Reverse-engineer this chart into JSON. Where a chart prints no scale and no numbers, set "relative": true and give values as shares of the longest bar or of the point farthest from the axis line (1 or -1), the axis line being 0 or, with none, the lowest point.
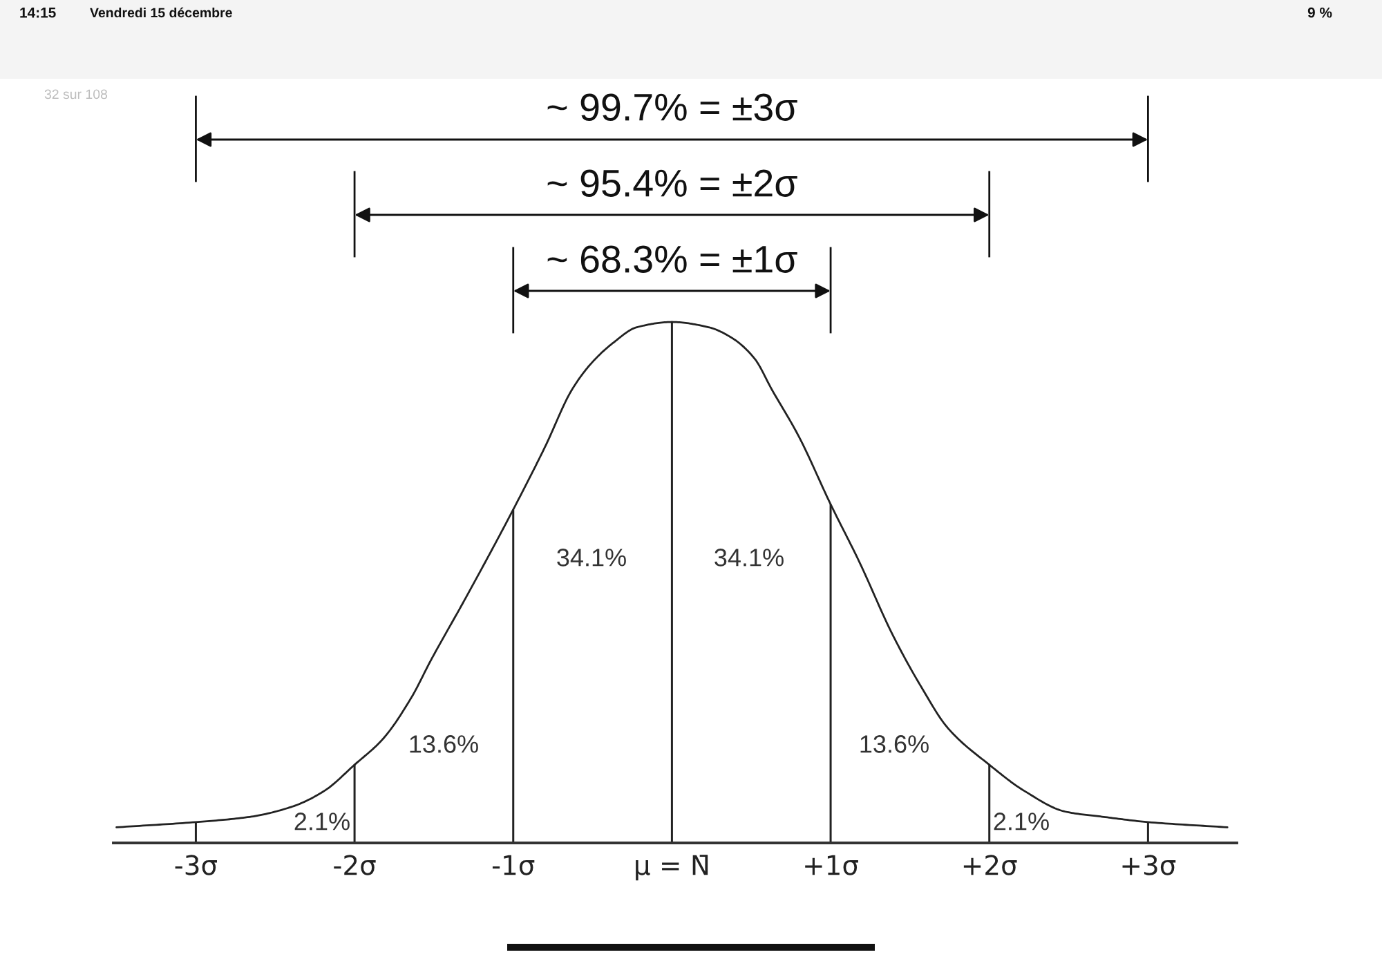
{
  "chart_data": {
    "type": "line",
    "relative": true,
    "xlim": [
      -3.52,
      3.56
    ],
    "xticks": [
      {
        "value": -3,
        "label": "-3σ"
      },
      {
        "value": -2,
        "label": "-2σ"
      },
      {
        "value": -1,
        "label": "-1σ"
      },
      {
        "value": 0,
        "label": "μ = N̄"
      },
      {
        "value": 1,
        "label": "+1σ"
      },
      {
        "value": 2,
        "label": "+2σ"
      },
      {
        "value": 3,
        "label": "+3σ"
      }
    ],
    "tick_labels": "x",
    "series": [
      {
        "color": "#222222",
        "x": [
          -3.5,
          -3.0,
          -2.66,
          -2.39,
          -2.19,
          -2.0,
          -1.82,
          -1.64,
          -1.52,
          -1.3,
          -1.0,
          -0.8,
          -0.63,
          -0.51,
          -0.37,
          -0.22,
          0,
          0.23,
          0.375,
          0.52,
          0.63,
          0.8,
          1.0,
          1.18,
          1.39,
          1.57,
          1.74,
          2.0,
          2.22,
          2.48,
          2.72,
          3.0,
          3.5
        ],
        "values": [
          0.03,
          0.04,
          0.05,
          0.07,
          0.1,
          0.15,
          0.2,
          0.28,
          0.35,
          0.47,
          0.64,
          0.76,
          0.87,
          0.92,
          0.96,
          0.99,
          1.0,
          0.99,
          0.97,
          0.93,
          0.87,
          0.78,
          0.65,
          0.54,
          0.4,
          0.3,
          0.22,
          0.15,
          0.1,
          0.06,
          0.05,
          0.04,
          0.03
        ]
      },
      {
        "type": "bar",
        "color": "#222222",
        "x": [
          -3,
          -2,
          -1,
          0,
          1,
          2,
          3
        ],
        "values": [
          0.04,
          0.15,
          0.64,
          1.0,
          0.65,
          0.15,
          0.04
        ]
      }
    ],
    "annotations": [
      "14:15",
      "Vendredi 15 décembre",
      "9 %",
      "32 sur 108",
      "~ 99.7% = ±3σ",
      "~ 95.4% = ±2σ",
      "~ 68.3% = ±1σ",
      "34.1%",
      "34.1%",
      "13.6%",
      "13.6%",
      "2.1%",
      "2.1%"
    ]
  }
}
